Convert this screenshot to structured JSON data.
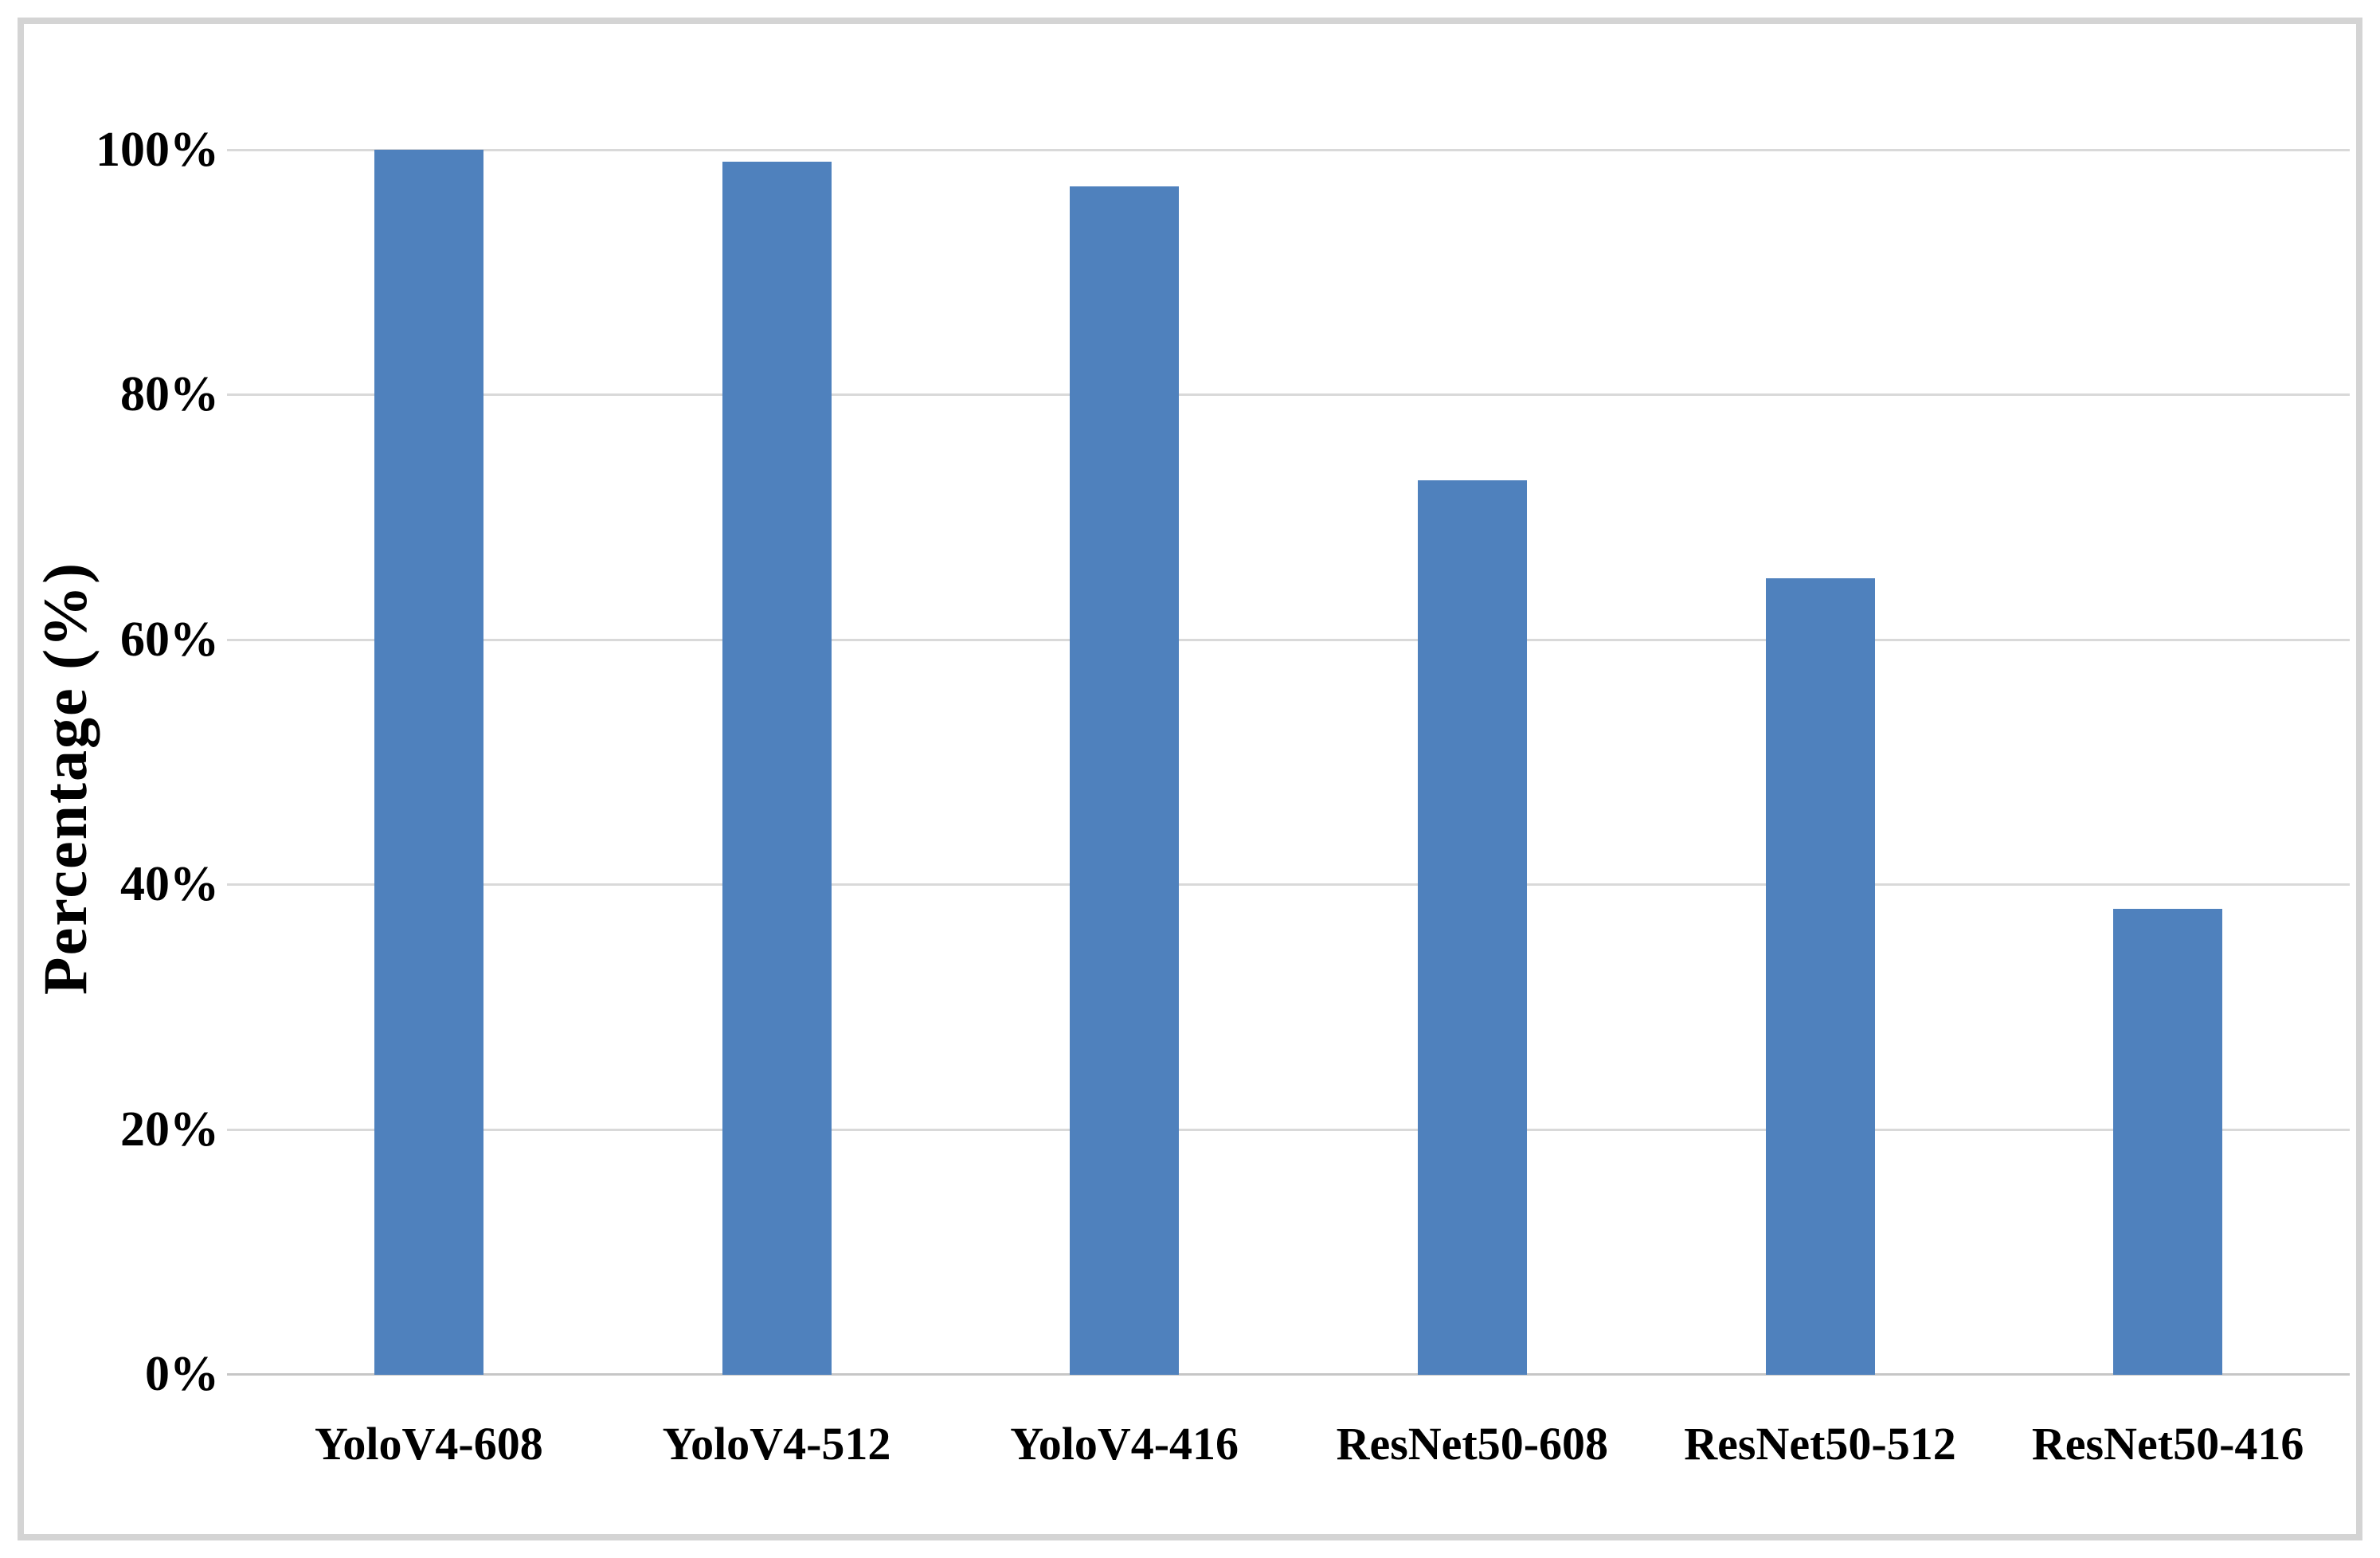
{
  "chart_data": {
    "type": "bar",
    "title": "",
    "categories": [
      "YoloV4-608",
      "YoloV4-512",
      "YoloV4-416",
      "ResNet50-608",
      "ResNet50-512",
      "ResNet50-416"
    ],
    "values": [
      100,
      99,
      97,
      73,
      65,
      38
    ],
    "value_suffix": "%",
    "xlabel": "",
    "ylabel": "Percentage (%)",
    "ylim": [
      0,
      100
    ],
    "yticks": [
      {
        "value": 0,
        "label": "0%"
      },
      {
        "value": 20,
        "label": "20%"
      },
      {
        "value": 40,
        "label": "40%"
      },
      {
        "value": 60,
        "label": "60%"
      },
      {
        "value": 80,
        "label": "80%"
      },
      {
        "value": 100,
        "label": "100%"
      }
    ],
    "grid": "horizontal-major",
    "legend": "none",
    "colors": {
      "bar": "#4F81BD",
      "gridline": "#D9D9D9",
      "baseline": "#C6C6C6",
      "tick": "#C6C6C6",
      "text": "#000000",
      "frame_border": "#D4D4D4",
      "background": "#FFFFFF"
    }
  }
}
